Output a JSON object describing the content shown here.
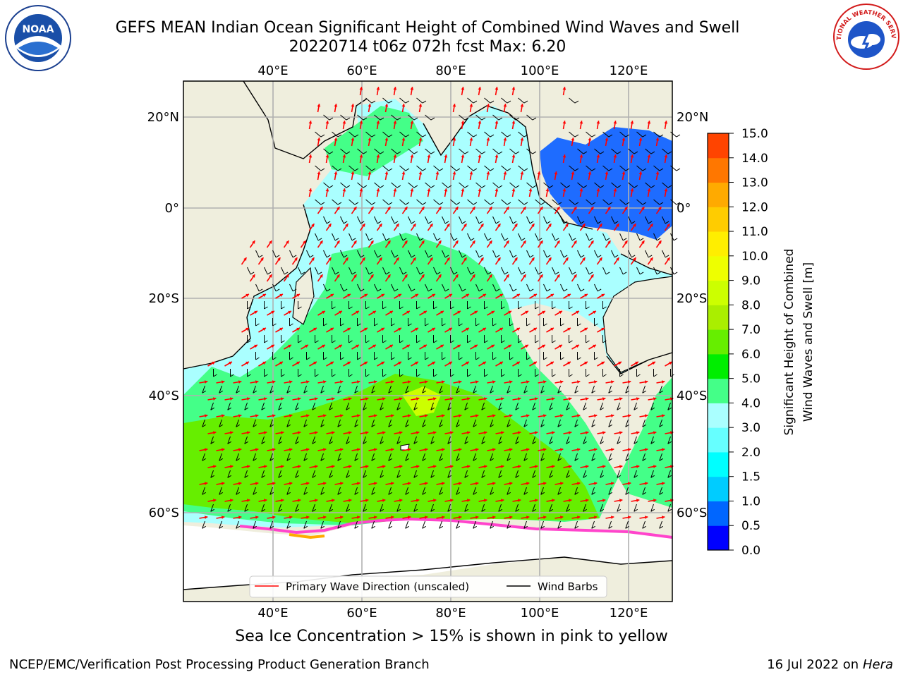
{
  "title_line1": "GEFS MEAN Indian Ocean Significant Height of Combined Wind Waves and Swell",
  "title_line2": "20220714 t06z 072h fcst   Max: 6.20",
  "lon_ticks": [
    "40°E",
    "60°E",
    "80°E",
    "100°E",
    "120°E"
  ],
  "lat_ticks": [
    "20°N",
    "0°",
    "20°S",
    "40°S",
    "60°S"
  ],
  "colorbar": {
    "label_line1": "Significant Height of Combined",
    "label_line2": "Wind Waves and Swell [m]",
    "ticks": [
      "0.0",
      "0.5",
      "1.0",
      "1.5",
      "2.0",
      "3.0",
      "4.0",
      "5.0",
      "6.0",
      "7.0",
      "8.0",
      "9.0",
      "10.0",
      "11.0",
      "12.0",
      "13.0",
      "14.0",
      "15.0"
    ],
    "colors": [
      "#0000ff",
      "#0066ff",
      "#00ccff",
      "#00ffff",
      "#66ffff",
      "#aaffff",
      "#44ff88",
      "#00ee00",
      "#66ee00",
      "#aaee00",
      "#ccff00",
      "#eeff00",
      "#ffee00",
      "#ffcc00",
      "#ffaa00",
      "#ff7700",
      "#ff4400",
      "#ff0000"
    ]
  },
  "legend": {
    "primary": "Primary Wave Direction (unscaled)",
    "barbs": "Wind Barbs"
  },
  "footer_note": "Sea Ice Concentration > 15% is shown in pink to yellow",
  "credit": "NCEP/EMC/Verification Post Processing Product Generation Branch",
  "date_prefix": "16 Jul 2022 on ",
  "date_host": "Hera",
  "logos": {
    "left": "NOAA",
    "right": "NATIONAL WEATHER SERVICE"
  },
  "colors": {
    "land": "#efeedd",
    "ocean_low": "#aaffff",
    "ocean_mid": "#44ff88",
    "ocean_high": "#66ee00",
    "arrows": "#ff0000",
    "barbs": "#000000"
  }
}
